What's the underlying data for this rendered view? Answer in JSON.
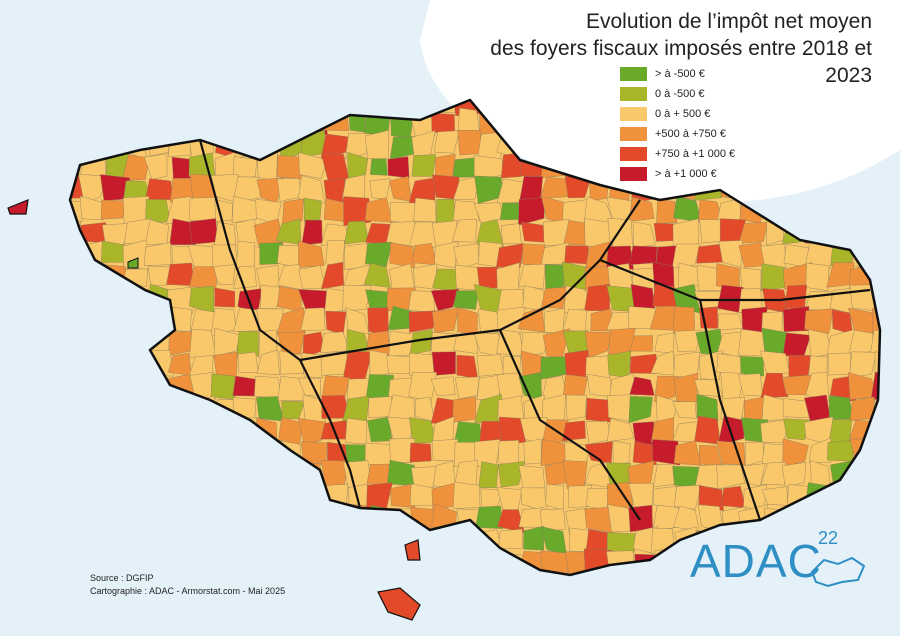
{
  "title_line1": "Evolution de l’impôt net moyen",
  "title_line2": "des foyers fiscaux imposés entre 2018 et 2023",
  "legend": [
    {
      "label": "> à -500 €",
      "color": "#6aaa2a"
    },
    {
      "label": "0 à -500 €",
      "color": "#a9b62a"
    },
    {
      "label": "0 à + 500 €",
      "color": "#f9c86a"
    },
    {
      "label": "+500 à +750 €",
      "color": "#f0923c"
    },
    {
      "label": "+750 à +1 000 €",
      "color": "#e34a2a"
    },
    {
      "label": "> à +1 000 €",
      "color": "#c61b2a"
    }
  ],
  "source_line": "Source : DGFIP",
  "cartography_line": "Cartographie : ADAC - Armorstat.com - Mai 2025",
  "logo": {
    "text": "ADAC",
    "number": "22"
  },
  "colors": {
    "sea": "#e4f1f9",
    "border": "#111111"
  }
}
